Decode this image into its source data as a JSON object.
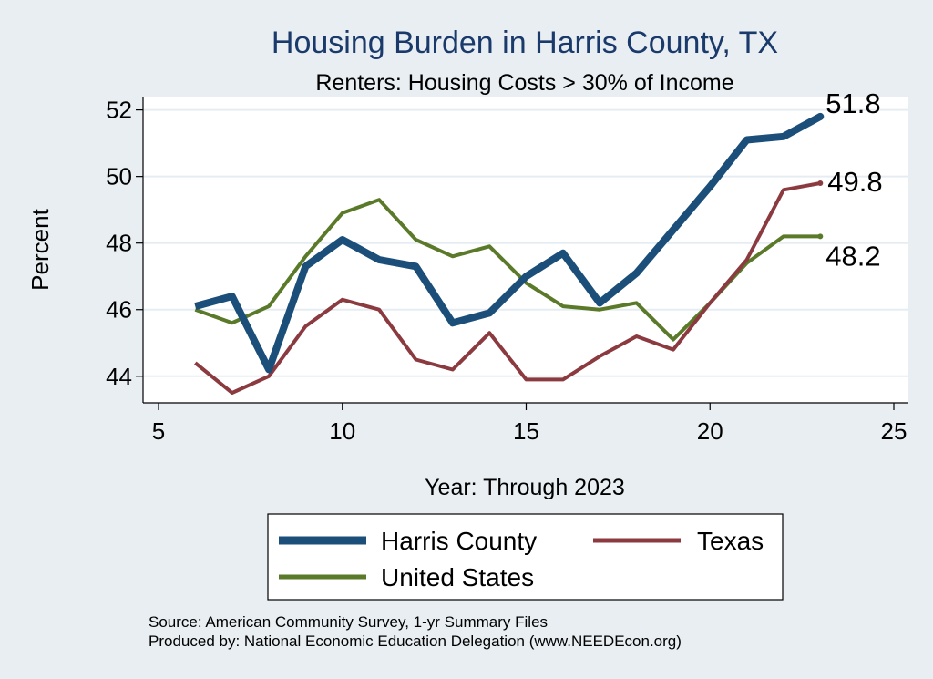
{
  "chart_data": {
    "type": "line",
    "title": "Housing Burden in Harris County, TX",
    "subtitle": "Renters: Housing Costs > 30% of Income",
    "xlabel": "Year: Through 2023",
    "ylabel": "Percent",
    "xlim": [
      5,
      25
    ],
    "ylim": [
      43.2,
      52.4
    ],
    "x_ticks": [
      5,
      10,
      15,
      20,
      25
    ],
    "y_ticks": [
      44,
      46,
      48,
      50,
      52
    ],
    "grid": true,
    "legend_position": "bottom",
    "colors": {
      "background": "#e8eef2",
      "plot_background": "#ffffff",
      "grid": "#e6edf2",
      "title": "#1a3a6b"
    },
    "x": [
      6,
      7,
      8,
      9,
      10,
      11,
      12,
      13,
      14,
      15,
      16,
      17,
      18,
      19,
      20,
      21,
      22,
      23
    ],
    "series": [
      {
        "name": "Harris County",
        "color": "#1b4f7a",
        "width": 8,
        "values": [
          46.1,
          46.4,
          44.2,
          47.3,
          48.1,
          47.5,
          47.3,
          45.6,
          45.9,
          47.0,
          47.7,
          46.2,
          47.1,
          48.4,
          49.7,
          51.1,
          51.2,
          51.8
        ],
        "end_label": "51.8"
      },
      {
        "name": "Texas",
        "color": "#8b3a3f",
        "width": 4,
        "values": [
          44.4,
          43.5,
          44.0,
          45.5,
          46.3,
          46.0,
          44.5,
          44.2,
          45.3,
          43.9,
          43.9,
          44.6,
          45.2,
          44.8,
          46.2,
          47.5,
          49.6,
          49.8
        ],
        "end_label": "49.8"
      },
      {
        "name": "United States",
        "color": "#5a7a2a",
        "width": 4,
        "values": [
          46.0,
          45.6,
          46.1,
          47.6,
          48.9,
          49.3,
          48.1,
          47.6,
          47.9,
          46.8,
          46.1,
          46.0,
          46.2,
          45.1,
          46.2,
          47.4,
          48.2,
          48.2
        ],
        "end_label": "48.2"
      }
    ],
    "source_lines": [
      "Source: American Community Survey, 1-yr Summary Files",
      "Produced by: National Economic Education Delegation (www.NEEDEcon.org)"
    ]
  }
}
